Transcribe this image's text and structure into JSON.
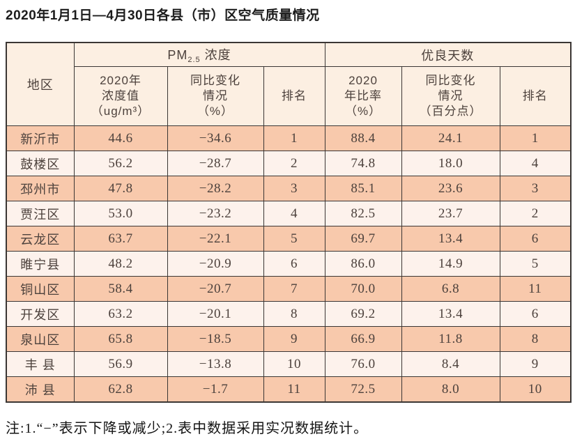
{
  "page": {
    "title": "2020年1月1日—4月30日各县（市）区空气质量情况",
    "note": "注:1.“−”表示下降或减少;2.表中数据采用实况数据统计。"
  },
  "colors": {
    "row_odd_bg": "#f8c9ac",
    "row_even_bg": "#fdf2ec",
    "header_bg": "#fcefe2",
    "border": "#3a3634",
    "text": "#4c413c"
  },
  "table": {
    "corner_header": "地区",
    "group_headers": {
      "pm25": {
        "prefix": "PM",
        "sub": "2.5",
        "suffix": " 浓度"
      },
      "good_days": "优良天数"
    },
    "sub_headers": [
      "2020年\n浓度值\n（ug/m³）",
      "同比变化\n情况\n（%）",
      "排名",
      "2020\n年比率\n（%）",
      "同比变化\n情况\n（百分点）",
      "排名"
    ],
    "rows": [
      {
        "region": "新沂市",
        "cols": [
          "44.6",
          "−34.6",
          "1",
          "88.4",
          "24.1",
          "1"
        ]
      },
      {
        "region": "鼓楼区",
        "cols": [
          "56.2",
          "−28.7",
          "2",
          "74.8",
          "18.0",
          "4"
        ]
      },
      {
        "region": "邳州市",
        "cols": [
          "47.8",
          "−28.2",
          "3",
          "85.1",
          "23.6",
          "3"
        ]
      },
      {
        "region": "贾汪区",
        "cols": [
          "53.0",
          "−23.2",
          "4",
          "82.5",
          "23.7",
          "2"
        ]
      },
      {
        "region": "云龙区",
        "cols": [
          "63.7",
          "−22.1",
          "5",
          "69.7",
          "13.4",
          "6"
        ]
      },
      {
        "region": "睢宁县",
        "cols": [
          "48.2",
          "−20.9",
          "6",
          "86.0",
          "14.9",
          "5"
        ]
      },
      {
        "region": "铜山区",
        "cols": [
          "58.4",
          "−20.7",
          "7",
          "70.0",
          "6.8",
          "11"
        ]
      },
      {
        "region": "开发区",
        "cols": [
          "63.2",
          "−20.1",
          "8",
          "69.2",
          "13.4",
          "6"
        ]
      },
      {
        "region": "泉山区",
        "cols": [
          "65.8",
          "−18.5",
          "9",
          "66.9",
          "11.8",
          "8"
        ]
      },
      {
        "region": "丰 县",
        "cols": [
          "56.9",
          "−13.8",
          "10",
          "76.0",
          "8.4",
          "9"
        ]
      },
      {
        "region": "沛 县",
        "cols": [
          "62.8",
          "−1.7",
          "11",
          "72.5",
          "8.0",
          "10"
        ]
      }
    ]
  }
}
